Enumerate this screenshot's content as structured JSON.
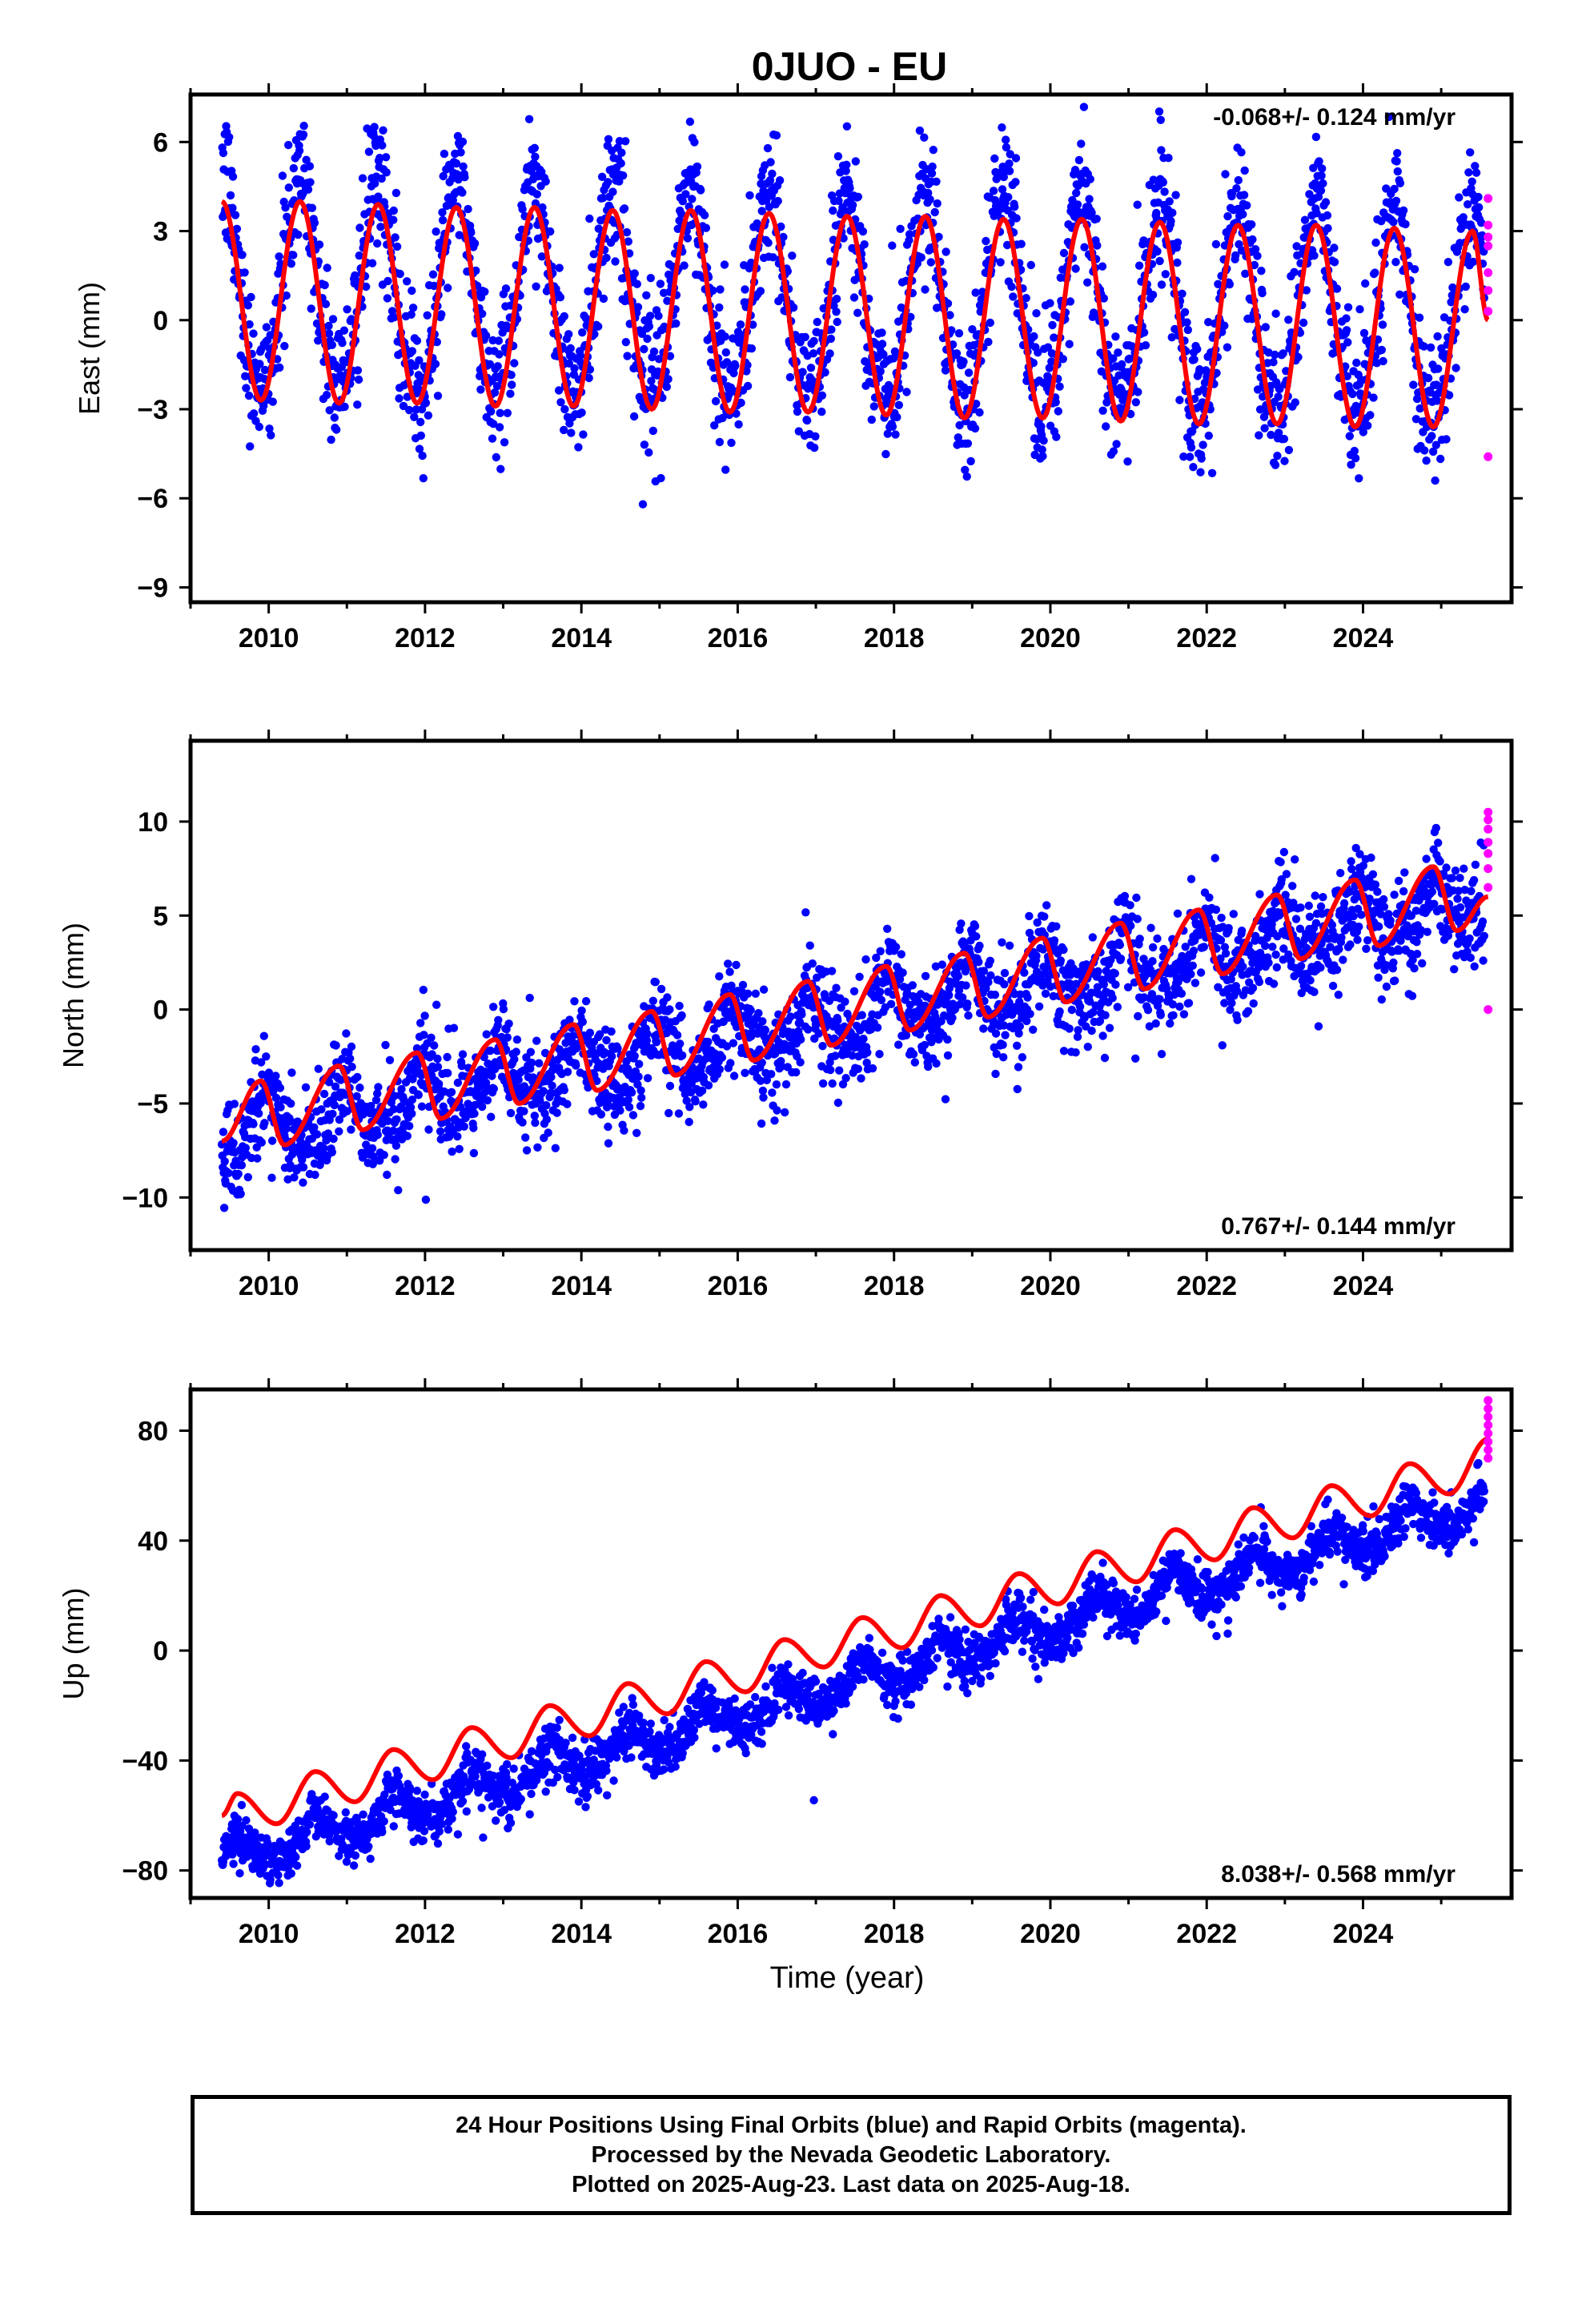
{
  "title": "0JUO - EU",
  "colors": {
    "final_orbits": "#0000ff",
    "rapid_orbits": "#ff00ff",
    "model_curve": "#ff0000",
    "axes": "#000000"
  },
  "xlabel": "Time (year)",
  "caption": [
    "24 Hour Positions Using Final Orbits (blue) and Rapid Orbits (magenta).",
    "Processed by the Nevada Geodetic Laboratory.",
    "Plotted on 2025-Aug-23. Last data on 2025-Aug-18."
  ],
  "chart_data": [
    {
      "type": "scatter",
      "ylabel": "East (mm)",
      "rate_text": "-0.068+/- 0.124 mm/yr",
      "rate_position": "top-right",
      "xlim": [
        2009.0,
        2025.9
      ],
      "ylim": [
        -9.5,
        7.6
      ],
      "xticks": [
        2010,
        2012,
        2014,
        2016,
        2018,
        2020,
        2022,
        2024
      ],
      "yticks": [
        -9,
        -6,
        -3,
        0,
        3,
        6
      ],
      "ytick_labels": [
        "−9",
        "−6",
        "−3",
        "0",
        "3",
        "6"
      ],
      "series": [
        {
          "style": "points",
          "color": "#0000ff",
          "x_range": [
            2009.4,
            2025.55
          ],
          "trend_mm_per_yr": -0.068,
          "offset": 0.6,
          "annual_amplitude": 3.4,
          "annual_phase_peak": 0.4,
          "semiannual_amplitude": 0.3,
          "scatter_sd": 1.2
        },
        {
          "style": "points",
          "color": "#ff00ff",
          "x": [
            2025.6,
            2025.6,
            2025.6,
            2025.6,
            2025.6,
            2025.6,
            2025.6,
            2025.6
          ],
          "y": [
            4.1,
            3.2,
            2.8,
            2.5,
            1.6,
            1.0,
            0.3,
            -4.6
          ]
        },
        {
          "style": "line",
          "color": "#ff0000",
          "x": [
            2009.4,
            2009.9,
            2010.4,
            2010.9,
            2011.4,
            2011.9,
            2012.4,
            2012.9,
            2013.4,
            2013.9,
            2014.4,
            2014.9,
            2015.4,
            2015.9,
            2016.4,
            2016.9,
            2017.4,
            2017.9,
            2018.4,
            2018.9,
            2019.4,
            2019.9,
            2020.4,
            2020.9,
            2021.4,
            2021.9,
            2022.4,
            2022.9,
            2023.4,
            2023.9,
            2024.4,
            2024.9,
            2025.4,
            2025.6
          ],
          "y": [
            4.0,
            -2.7,
            4.0,
            -2.8,
            3.9,
            -2.8,
            3.8,
            -2.9,
            3.8,
            -2.9,
            3.7,
            -3.0,
            3.7,
            -3.1,
            3.6,
            -3.1,
            3.5,
            -3.2,
            3.5,
            -3.3,
            3.4,
            -3.3,
            3.4,
            -3.4,
            3.3,
            -3.5,
            3.2,
            -3.5,
            3.2,
            -3.6,
            3.1,
            -3.6,
            3.0,
            0.0
          ]
        }
      ]
    },
    {
      "type": "scatter",
      "ylabel": "North (mm)",
      "rate_text": "0.767+/- 0.144 mm/yr",
      "rate_position": "bottom-right",
      "xlim": [
        2009.0,
        2025.9
      ],
      "ylim": [
        -12.8,
        14.3
      ],
      "xticks": [
        2010,
        2012,
        2014,
        2016,
        2018,
        2020,
        2022,
        2024
      ],
      "yticks": [
        -10,
        -5,
        0,
        5,
        10
      ],
      "ytick_labels": [
        "−10",
        "−5",
        "0",
        "5",
        "10"
      ],
      "series": [
        {
          "style": "points",
          "color": "#0000ff",
          "x_range": [
            2009.4,
            2025.55
          ],
          "trend_mm_per_yr": 0.767,
          "offset": -0.5,
          "annual_amplitude": 1.4,
          "annual_phase_peak": 0.95,
          "semiannual_amplitude": 0.4,
          "scatter_sd": 1.3
        },
        {
          "style": "points",
          "color": "#ff00ff",
          "x": [
            2025.6,
            2025.6,
            2025.6,
            2025.6,
            2025.6,
            2025.6,
            2025.6,
            2025.6
          ],
          "y": [
            10.5,
            10.1,
            9.6,
            8.9,
            8.3,
            7.5,
            6.5,
            0.0
          ]
        },
        {
          "style": "line",
          "color": "#ff0000",
          "x": [
            2009.4,
            2009.9,
            2010.2,
            2010.9,
            2011.2,
            2011.9,
            2012.2,
            2012.9,
            2013.2,
            2013.9,
            2014.2,
            2014.9,
            2015.2,
            2015.9,
            2016.2,
            2016.9,
            2017.2,
            2017.9,
            2018.2,
            2018.9,
            2019.2,
            2019.9,
            2020.2,
            2020.9,
            2021.2,
            2021.9,
            2022.2,
            2022.9,
            2023.2,
            2023.9,
            2024.2,
            2024.9,
            2025.2,
            2025.6
          ],
          "y": [
            -7.0,
            -3.8,
            -7.2,
            -3.0,
            -6.4,
            -2.3,
            -5.8,
            -1.6,
            -5.0,
            -0.8,
            -4.3,
            -0.1,
            -3.5,
            0.8,
            -2.7,
            1.5,
            -1.9,
            2.3,
            -1.1,
            3.0,
            -0.4,
            3.8,
            0.4,
            4.6,
            1.1,
            5.3,
            1.9,
            6.1,
            2.7,
            6.9,
            3.4,
            7.6,
            4.2,
            6.0
          ]
        }
      ]
    },
    {
      "type": "scatter",
      "ylabel": "Up (mm)",
      "rate_text": "8.038+/- 0.568 mm/yr",
      "rate_position": "bottom-right",
      "xlim": [
        2009.0,
        2025.9
      ],
      "ylim": [
        -90,
        95
      ],
      "xticks": [
        2010,
        2012,
        2014,
        2016,
        2018,
        2020,
        2022,
        2024
      ],
      "yticks": [
        -80,
        -40,
        0,
        40,
        80
      ],
      "ytick_labels": [
        "−80",
        "−40",
        "0",
        "40",
        "80"
      ],
      "series": [
        {
          "style": "points",
          "color": "#0000ff",
          "x_range": [
            2009.4,
            2025.55
          ],
          "trend_mm_per_yr": 8.038,
          "offset": -11.5,
          "annual_amplitude": 6.0,
          "annual_phase_peak": 0.6,
          "semiannual_amplitude": 1.0,
          "scatter_sd": 4.5
        },
        {
          "style": "points",
          "color": "#ff00ff",
          "x": [
            2025.6,
            2025.6,
            2025.6,
            2025.6,
            2025.6,
            2025.6,
            2025.6,
            2025.6
          ],
          "y": [
            91,
            88,
            85,
            82,
            79,
            76,
            73,
            70
          ]
        },
        {
          "style": "line",
          "color": "#ff0000",
          "x": [
            2009.4,
            2009.6,
            2010.1,
            2010.6,
            2011.1,
            2011.6,
            2012.1,
            2012.6,
            2013.1,
            2013.6,
            2014.1,
            2014.6,
            2015.1,
            2015.6,
            2016.1,
            2016.6,
            2017.1,
            2017.6,
            2018.1,
            2018.6,
            2019.1,
            2019.6,
            2020.1,
            2020.6,
            2021.1,
            2021.6,
            2022.1,
            2022.6,
            2023.1,
            2023.6,
            2024.1,
            2024.6,
            2025.1,
            2025.6
          ],
          "y": [
            -60,
            -52,
            -63,
            -44,
            -55,
            -36,
            -47,
            -28,
            -39,
            -20,
            -31,
            -12,
            -23,
            -4,
            -15,
            4,
            -6,
            12,
            1,
            20,
            9,
            28,
            17,
            36,
            25,
            44,
            33,
            52,
            41,
            60,
            49,
            68,
            57,
            77
          ]
        }
      ]
    }
  ]
}
